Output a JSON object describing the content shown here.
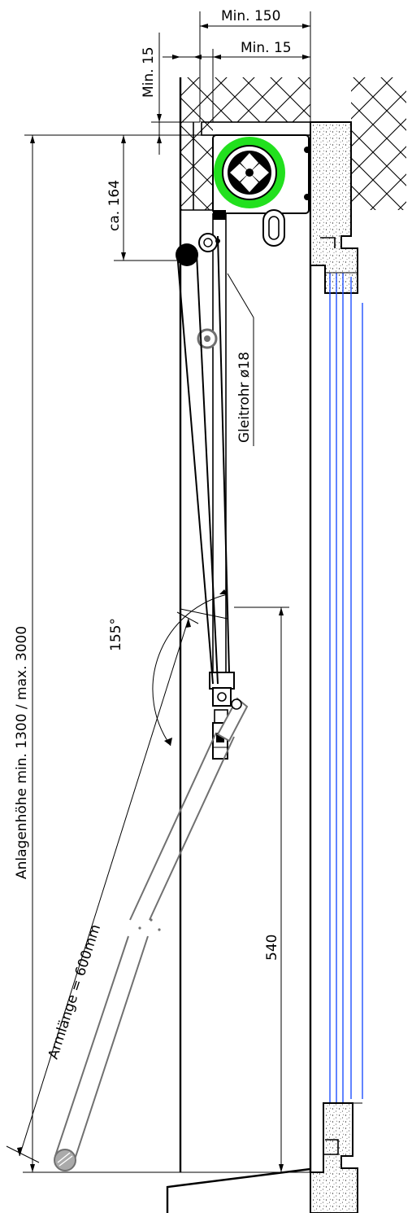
{
  "dimensions": {
    "top_min_150": "Min. 150",
    "top_min_15": "Min. 15",
    "left_min_15": "Min. 15",
    "ca_164": "ca. 164",
    "total_height": "Anlagenhöhe min. 1300 / max. 3000",
    "angle": "155°",
    "arm_length": "Armlänge = 600mm",
    "bottom_540": "540"
  },
  "labels": {
    "glide_tube": "Gleitrohr ø18"
  },
  "colors": {
    "motor_green": "#22e01e",
    "glass_blue": "#1f4fff",
    "arm_gray": "#707070",
    "line": "#000000"
  }
}
